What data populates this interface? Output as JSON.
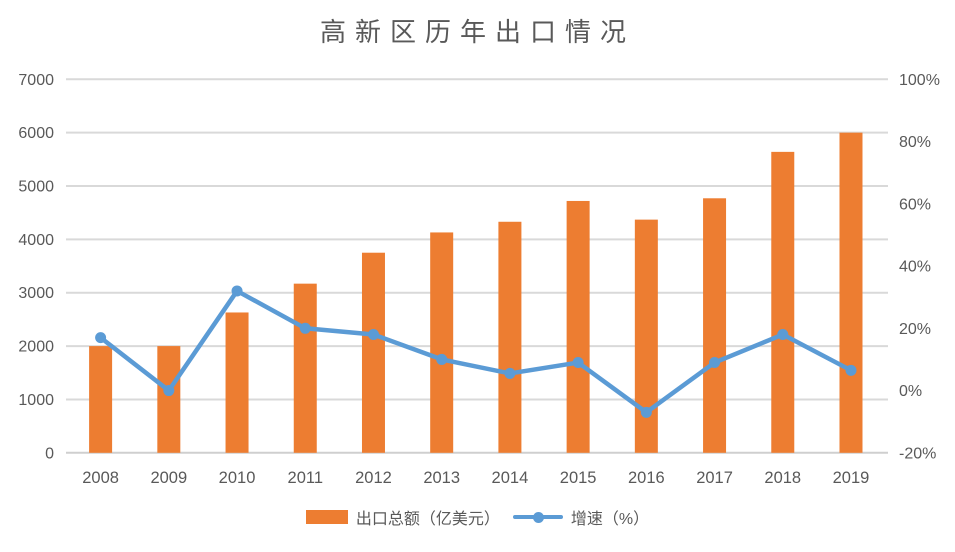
{
  "colors": {
    "bar": "#ED7D31",
    "line": "#5B9BD5",
    "grid": "#D9D9D9",
    "axis_line": "#CFCFCF",
    "axis_text": "#595959",
    "title_text": "#595959",
    "background": "#FFFFFF"
  },
  "chart_data": {
    "type": "bar+line",
    "title": "高新区历年出口情况",
    "categories": [
      "2008",
      "2009",
      "2010",
      "2011",
      "2012",
      "2013",
      "2014",
      "2015",
      "2016",
      "2017",
      "2018",
      "2019"
    ],
    "series": [
      {
        "name": "出口总额（亿美元）",
        "type": "bar",
        "axis": "left",
        "color": "#ED7D31",
        "values": [
          2000,
          2000,
          2630,
          3170,
          3750,
          4130,
          4330,
          4720,
          4370,
          4770,
          5640,
          6000
        ]
      },
      {
        "name": "增速（%）",
        "type": "line",
        "axis": "right",
        "color": "#5B9BD5",
        "values": [
          17,
          0,
          32,
          20,
          18,
          10,
          5.5,
          9,
          -7,
          9,
          18,
          6.5
        ]
      }
    ],
    "left_axis": {
      "min": 0,
      "max": 7000,
      "step": 1000,
      "tick_labels": [
        "0",
        "1000",
        "2000",
        "3000",
        "4000",
        "5000",
        "6000",
        "7000"
      ]
    },
    "right_axis": {
      "min": -20,
      "max": 100,
      "step": 20,
      "tick_labels": [
        "-20%",
        "0%",
        "20%",
        "40%",
        "60%",
        "80%",
        "100%"
      ]
    },
    "grid": true,
    "legend_position": "bottom"
  }
}
